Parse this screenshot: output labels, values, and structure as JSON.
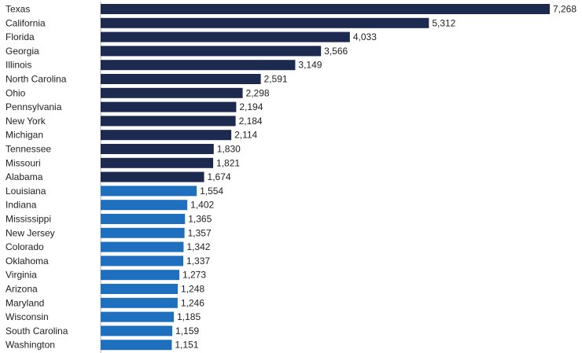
{
  "chart_data": {
    "type": "bar",
    "orientation": "horizontal",
    "title": "",
    "xlabel": "",
    "ylabel": "",
    "grid": false,
    "legend": "none",
    "xlim": [
      0,
      7268
    ],
    "categories": [
      "Texas",
      "California",
      "Florida",
      "Georgia",
      "Illinois",
      "North Carolina",
      "Ohio",
      "Pennsylvania",
      "New York",
      "Michigan",
      "Tennessee",
      "Missouri",
      "Alabama",
      "Louisiana",
      "Indiana",
      "Mississippi",
      "New Jersey",
      "Colorado",
      "Oklahoma",
      "Virginia",
      "Arizona",
      "Maryland",
      "Wisconsin",
      "South Carolina",
      "Washington"
    ],
    "values": [
      7268,
      5312,
      4033,
      3566,
      3149,
      2591,
      2298,
      2194,
      2184,
      2114,
      1830,
      1821,
      1674,
      1554,
      1402,
      1365,
      1357,
      1342,
      1337,
      1273,
      1248,
      1246,
      1185,
      1159,
      1151
    ],
    "value_labels": [
      "7,268",
      "5,312",
      "4,033",
      "3,566",
      "3,149",
      "2,591",
      "2,298",
      "2,194",
      "2,184",
      "2,114",
      "1,830",
      "1,821",
      "1,674",
      "1,554",
      "1,402",
      "1,365",
      "1,357",
      "1,342",
      "1,337",
      "1,273",
      "1,248",
      "1,246",
      "1,185",
      "1,159",
      "1,151"
    ],
    "colors": {
      "dark": "#1b2a4e",
      "light": "#1f6fbf",
      "axis": "#b0b0b0"
    },
    "dark_count": 13
  }
}
